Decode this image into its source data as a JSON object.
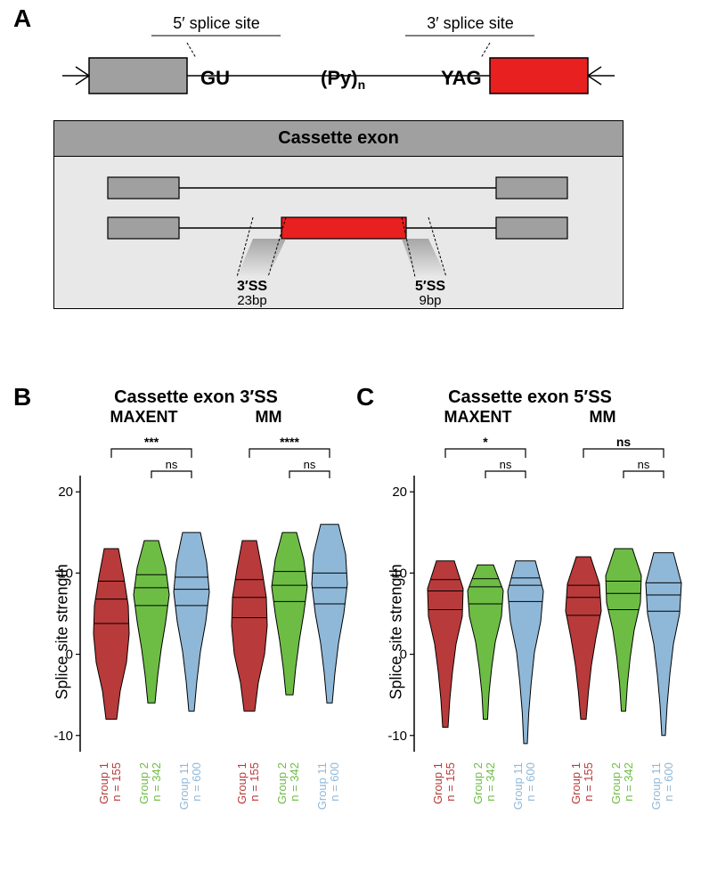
{
  "panels": {
    "a": "A",
    "b": "B",
    "c": "C"
  },
  "splice_diagram": {
    "label_5ss": "5′ splice site",
    "label_3ss": "3′ splice site",
    "seq_left": "GU",
    "seq_mid": "(Py)",
    "seq_mid_sub": "n",
    "seq_right": "YAG",
    "exon_color_left": "#a0a0a0",
    "exon_color_right": "#e82020"
  },
  "cassette": {
    "header": "Cassette exon",
    "label_3ss": "3′SS",
    "label_3ss_bp": "23bp",
    "label_5ss": "5′SS",
    "label_5ss_bp": "9bp",
    "exon_gray": "#a0a0a0",
    "exon_red": "#e82020",
    "bg": "#e8e8e8"
  },
  "charts": {
    "b": {
      "title": "Cassette exon 3′SS",
      "left_sub": "MAXENT",
      "right_sub": "MM",
      "ylabel": "Splice site strength",
      "ylim": [
        -12,
        22
      ],
      "yticks": [
        -10,
        0,
        10,
        20
      ],
      "groups": [
        {
          "name": "Group 1",
          "n": "n = 155",
          "color": "#b93a3a"
        },
        {
          "name": "Group 2",
          "n": "n = 342",
          "color": "#6dbd45"
        },
        {
          "name": "Group 11",
          "n": "n = 600",
          "color": "#8fb8d8"
        }
      ],
      "sig_left": [
        "***",
        "ns"
      ],
      "sig_right": [
        "****",
        "ns"
      ]
    },
    "c": {
      "title": "Cassette exon 5′SS",
      "left_sub": "MAXENT",
      "right_sub": "MM",
      "ylabel": "Splice site strength",
      "ylim": [
        -12,
        22
      ],
      "yticks": [
        -10,
        0,
        10,
        20
      ],
      "groups": [
        {
          "name": "Group 1",
          "n": "n = 155",
          "color": "#b93a3a"
        },
        {
          "name": "Group 2",
          "n": "n = 342",
          "color": "#6dbd45"
        },
        {
          "name": "Group 11",
          "n": "n = 600",
          "color": "#8fb8d8"
        }
      ],
      "sig_left": [
        "*",
        "ns"
      ],
      "sig_right": [
        "ns",
        "ns"
      ]
    },
    "violin_data": {
      "b_maxent": [
        {
          "median": 6.8,
          "q1": 3.8,
          "q3": 9.0,
          "min": -8,
          "max": 13,
          "widths": [
            0.3,
            0.5,
            0.85,
            1.0,
            0.95,
            0.7,
            0.4
          ]
        },
        {
          "median": 8.2,
          "q1": 6.0,
          "q3": 9.8,
          "min": -6,
          "max": 14,
          "widths": [
            0.2,
            0.35,
            0.55,
            0.8,
            1.0,
            0.8,
            0.4
          ]
        },
        {
          "median": 8.0,
          "q1": 6.0,
          "q3": 9.5,
          "min": -7,
          "max": 15,
          "widths": [
            0.15,
            0.3,
            0.5,
            0.8,
            1.0,
            0.85,
            0.5
          ]
        }
      ],
      "b_mm": [
        {
          "median": 7.0,
          "q1": 4.5,
          "q3": 9.2,
          "min": -7,
          "max": 14,
          "widths": [
            0.3,
            0.5,
            0.85,
            1.0,
            0.95,
            0.7,
            0.4
          ]
        },
        {
          "median": 8.5,
          "q1": 6.5,
          "q3": 10.2,
          "min": -5,
          "max": 15,
          "widths": [
            0.2,
            0.35,
            0.55,
            0.8,
            1.0,
            0.8,
            0.4
          ]
        },
        {
          "median": 8.2,
          "q1": 6.2,
          "q3": 10.0,
          "min": -6,
          "max": 16,
          "widths": [
            0.15,
            0.3,
            0.5,
            0.8,
            1.0,
            0.9,
            0.5
          ]
        }
      ],
      "c_maxent": [
        {
          "median": 7.8,
          "q1": 5.5,
          "q3": 9.2,
          "min": -9,
          "max": 11.5,
          "widths": [
            0.15,
            0.25,
            0.4,
            0.6,
            0.95,
            1.0,
            0.5
          ]
        },
        {
          "median": 8.3,
          "q1": 6.2,
          "q3": 9.3,
          "min": -8,
          "max": 11,
          "widths": [
            0.12,
            0.2,
            0.35,
            0.55,
            0.9,
            1.0,
            0.45
          ]
        },
        {
          "median": 8.5,
          "q1": 6.5,
          "q3": 9.4,
          "min": -11,
          "max": 11.5,
          "widths": [
            0.1,
            0.18,
            0.32,
            0.5,
            0.85,
            1.0,
            0.55
          ]
        }
      ],
      "c_mm": [
        {
          "median": 7.0,
          "q1": 4.8,
          "q3": 8.5,
          "min": -8,
          "max": 12,
          "widths": [
            0.15,
            0.28,
            0.45,
            0.7,
            1.0,
            0.9,
            0.4
          ]
        },
        {
          "median": 7.5,
          "q1": 5.5,
          "q3": 9.0,
          "min": -7,
          "max": 13,
          "widths": [
            0.12,
            0.22,
            0.38,
            0.6,
            0.95,
            1.0,
            0.5
          ]
        },
        {
          "median": 7.3,
          "q1": 5.3,
          "q3": 8.8,
          "min": -10,
          "max": 12.5,
          "widths": [
            0.1,
            0.2,
            0.35,
            0.55,
            0.9,
            1.0,
            0.55
          ]
        }
      ]
    }
  }
}
